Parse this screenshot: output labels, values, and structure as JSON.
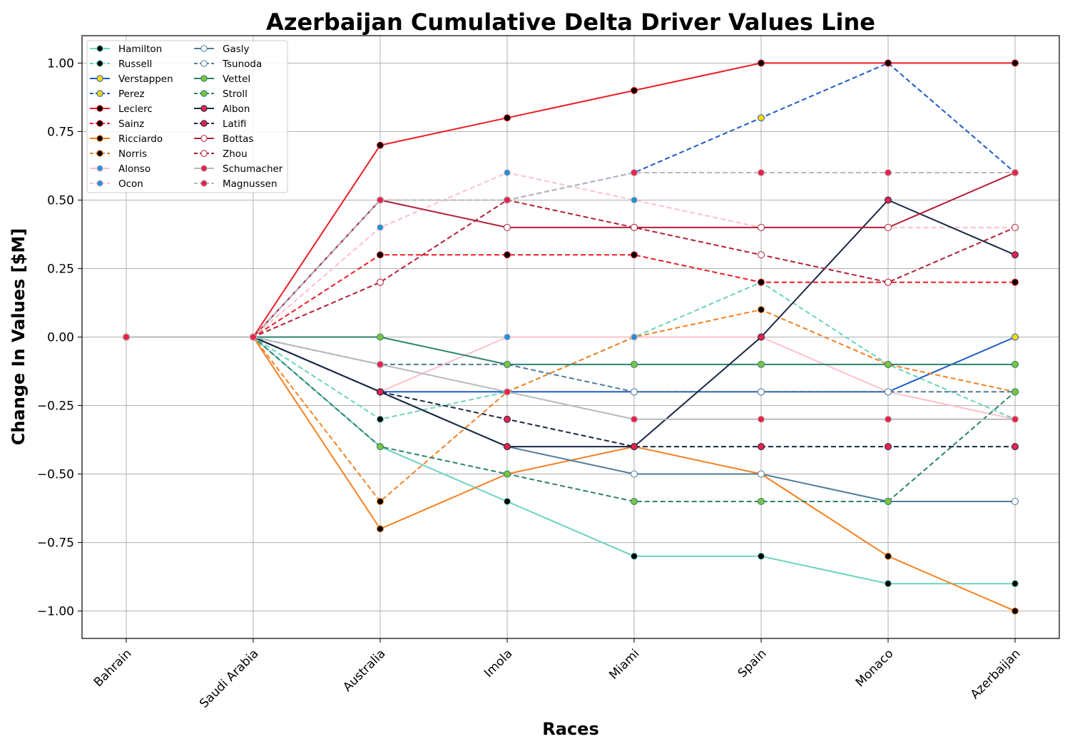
{
  "chart_data": {
    "type": "line",
    "title": "Azerbaijan Cumulative Delta Driver Values Line",
    "xlabel": "Races",
    "ylabel": "Change In Values [$M]",
    "categories": [
      "Bahrain",
      "Saudi Arabia",
      "Australia",
      "Imola",
      "Miami",
      "Spain",
      "Monaco",
      "Azerbaijan"
    ],
    "ylim": [
      -1.1,
      1.1
    ],
    "yticks": [
      -1.0,
      -0.75,
      -0.5,
      -0.25,
      0.0,
      0.25,
      0.5,
      0.75,
      1.0
    ],
    "ytick_labels": [
      "−1.00",
      "−0.75",
      "−0.50",
      "−0.25",
      "0.00",
      "0.25",
      "0.50",
      "0.75",
      "1.00"
    ],
    "grid": true,
    "legend_position": "top-left",
    "legend_columns": 2,
    "series": [
      {
        "name": "Hamilton",
        "line_color": "#6cd3bf",
        "marker_face": "#000000",
        "marker_edge": "#6cd3bf",
        "dashed": false,
        "values": [
          0,
          0,
          -0.4,
          -0.6,
          -0.8,
          -0.8,
          -0.9,
          -0.9
        ]
      },
      {
        "name": "Russell",
        "line_color": "#6cd3bf",
        "marker_face": "#000000",
        "marker_edge": "#6cd3bf",
        "dashed": true,
        "values": [
          0,
          0,
          -0.3,
          -0.2,
          0.0,
          0.2,
          -0.1,
          -0.3
        ]
      },
      {
        "name": "Verstappen",
        "line_color": "#1e5bc6",
        "marker_face": "#ffd700",
        "marker_edge": "#1e5bc6",
        "dashed": false,
        "values": [
          0,
          0,
          -0.2,
          -0.2,
          -0.2,
          -0.2,
          -0.2,
          0.0
        ]
      },
      {
        "name": "Perez",
        "line_color": "#1e5bc6",
        "marker_face": "#ffd700",
        "marker_edge": "#1e5bc6",
        "dashed": true,
        "values": [
          0,
          0,
          0.5,
          0.5,
          0.6,
          0.8,
          1.0,
          0.6
        ]
      },
      {
        "name": "Leclerc",
        "line_color": "#ed1c24",
        "marker_face": "#000000",
        "marker_edge": "#ed1c24",
        "dashed": false,
        "values": [
          0,
          0,
          0.7,
          0.8,
          0.9,
          1.0,
          1.0,
          1.0
        ]
      },
      {
        "name": "Sainz",
        "line_color": "#ed1c24",
        "marker_face": "#000000",
        "marker_edge": "#ed1c24",
        "dashed": true,
        "values": [
          0,
          0,
          0.3,
          0.3,
          0.3,
          0.2,
          0.2,
          0.2
        ]
      },
      {
        "name": "Ricciardo",
        "line_color": "#f58020",
        "marker_face": "#000000",
        "marker_edge": "#f58020",
        "dashed": false,
        "values": [
          0,
          0,
          -0.7,
          -0.5,
          -0.4,
          -0.5,
          -0.8,
          -1.0
        ]
      },
      {
        "name": "Norris",
        "line_color": "#f58020",
        "marker_face": "#000000",
        "marker_edge": "#f58020",
        "dashed": true,
        "values": [
          0,
          0,
          -0.6,
          -0.2,
          0.0,
          0.1,
          -0.1,
          -0.2
        ]
      },
      {
        "name": "Alonso",
        "line_color": "#ffc0cb",
        "marker_face": "#2293d1",
        "marker_edge": "#ffc0cb",
        "dashed": false,
        "values": [
          0,
          0,
          -0.2,
          0.0,
          0.0,
          0.0,
          -0.2,
          -0.3
        ]
      },
      {
        "name": "Ocon",
        "line_color": "#ffc0cb",
        "marker_face": "#2293d1",
        "marker_edge": "#ffc0cb",
        "dashed": true,
        "values": [
          0,
          0,
          0.4,
          0.6,
          0.5,
          0.4,
          0.4,
          0.4
        ]
      },
      {
        "name": "Gasly",
        "line_color": "#4e7c9b",
        "marker_face": "#ffffff",
        "marker_edge": "#4e7c9b",
        "dashed": false,
        "values": [
          0,
          0,
          -0.2,
          -0.4,
          -0.5,
          -0.5,
          -0.6,
          -0.6
        ]
      },
      {
        "name": "Tsunoda",
        "line_color": "#4e7c9b",
        "marker_face": "#ffffff",
        "marker_edge": "#4e7c9b",
        "dashed": true,
        "values": [
          0,
          0,
          -0.1,
          -0.1,
          -0.2,
          -0.2,
          -0.2,
          -0.2
        ]
      },
      {
        "name": "Vettel",
        "line_color": "#2d826d",
        "marker_face": "#7ec242",
        "marker_edge": "#2d826d",
        "dashed": false,
        "values": [
          0,
          0,
          0.0,
          -0.1,
          -0.1,
          -0.1,
          -0.1,
          -0.1
        ]
      },
      {
        "name": "Stroll",
        "line_color": "#2d826d",
        "marker_face": "#7ec242",
        "marker_edge": "#2d826d",
        "dashed": true,
        "values": [
          0,
          0,
          -0.4,
          -0.5,
          -0.6,
          -0.6,
          -0.6,
          -0.2
        ]
      },
      {
        "name": "Albon",
        "line_color": "#1a2744",
        "marker_face": "#e8224a",
        "marker_edge": "#1a2744",
        "dashed": false,
        "values": [
          0,
          0,
          -0.2,
          -0.4,
          -0.4,
          0.0,
          0.5,
          0.3
        ]
      },
      {
        "name": "Latifi",
        "line_color": "#1a2744",
        "marker_face": "#e8224a",
        "marker_edge": "#1a2744",
        "dashed": true,
        "values": [
          0,
          0,
          -0.2,
          -0.3,
          -0.4,
          -0.4,
          -0.4,
          -0.4
        ]
      },
      {
        "name": "Bottas",
        "line_color": "#b12039",
        "marker_face": "#ffffff",
        "marker_edge": "#b12039",
        "dashed": false,
        "values": [
          0,
          0,
          0.5,
          0.4,
          0.4,
          0.4,
          0.4,
          0.6
        ]
      },
      {
        "name": "Zhou",
        "line_color": "#b12039",
        "marker_face": "#ffffff",
        "marker_edge": "#b12039",
        "dashed": true,
        "values": [
          0,
          0,
          0.2,
          0.5,
          0.4,
          0.3,
          0.2,
          0.4
        ]
      },
      {
        "name": "Schumacher",
        "line_color": "#b6babd",
        "marker_face": "#e8224a",
        "marker_edge": "#b6babd",
        "dashed": false,
        "values": [
          0,
          0,
          -0.1,
          -0.2,
          -0.3,
          -0.3,
          -0.3,
          -0.3
        ]
      },
      {
        "name": "Magnussen",
        "line_color": "#b6babd",
        "marker_face": "#e8224a",
        "marker_edge": "#b6babd",
        "dashed": true,
        "values": [
          0,
          0,
          0.5,
          0.5,
          0.6,
          0.6,
          0.6,
          0.6
        ]
      }
    ]
  }
}
